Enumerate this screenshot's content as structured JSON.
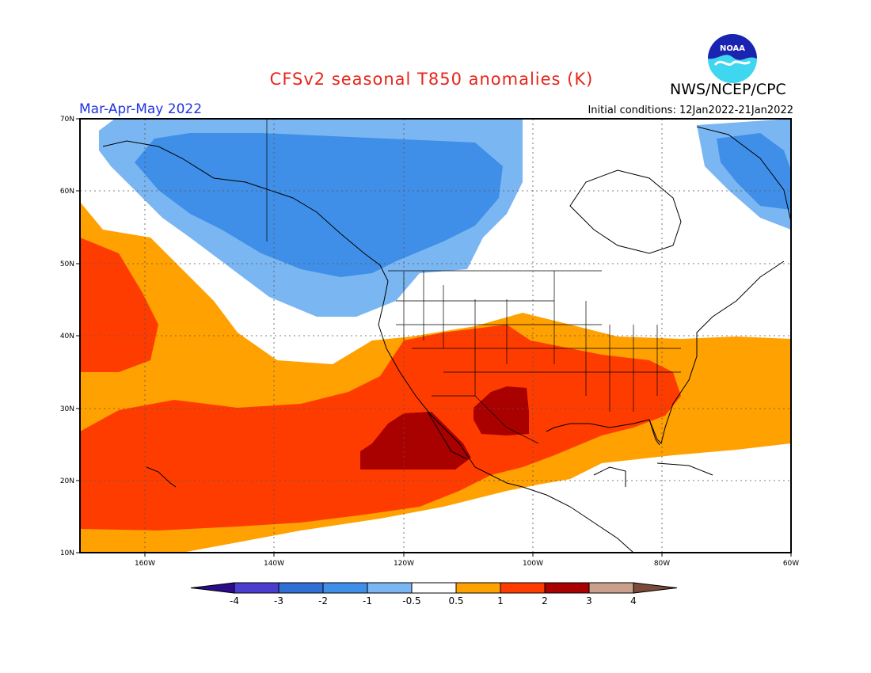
{
  "header": {
    "title": "CFSv2 seasonal T850 anomalies (K)",
    "agency": "NWS/NCEP/CPC",
    "season": "Mar-Apr-May 2022",
    "initial_conditions": "Initial conditions: 12Jan2022-21Jan2022",
    "logo_text": "NOAA"
  },
  "axes": {
    "lat_labels": [
      "70N",
      "60N",
      "50N",
      "40N",
      "30N",
      "20N",
      "10N"
    ],
    "lon_labels": [
      "160W",
      "140W",
      "120W",
      "100W",
      "80W",
      "60W"
    ]
  },
  "colorbar": {
    "labels": [
      "-4",
      "-3",
      "-2",
      "-1",
      "-0.5",
      "0.5",
      "1",
      "2",
      "3",
      "4"
    ],
    "colors": [
      "#2a0c8a",
      "#4b3ecf",
      "#2f6fd6",
      "#3f8fe8",
      "#7ab6f2",
      "#ffffff",
      "#ffa100",
      "#ff3c00",
      "#a90000",
      "#c8a08c",
      "#7a4a3a"
    ]
  },
  "colors": {
    "title": "#e8251b",
    "season": "#2233dd",
    "land_outline": "#000000"
  }
}
